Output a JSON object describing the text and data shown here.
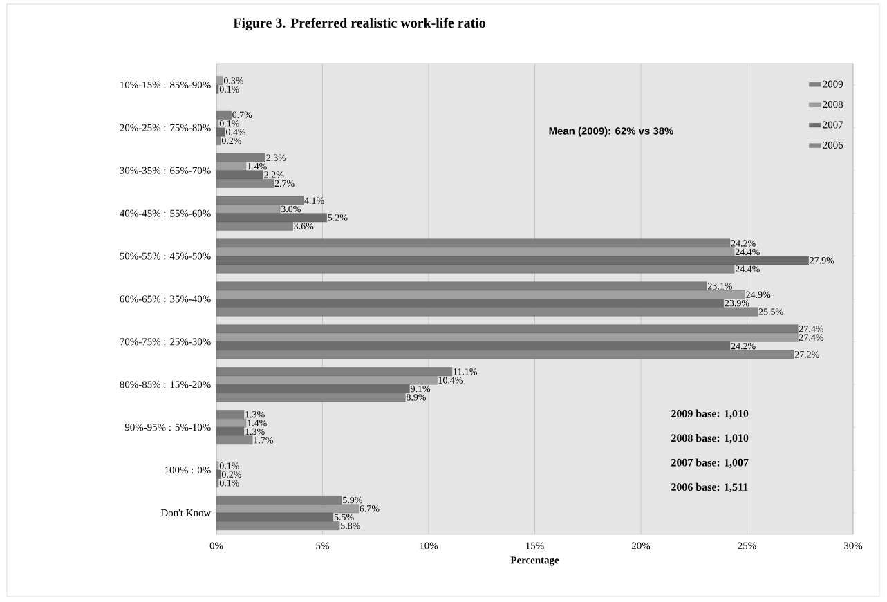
{
  "chart_data": {
    "type": "bar",
    "orientation": "horizontal",
    "title": "Figure 3. Preferred realistic work-life ratio",
    "xlabel": "Percentage",
    "categories": [
      "10%-15% : 85%-90%",
      "20%-25% : 75%-80%",
      "30%-35% : 65%-70%",
      "40%-45% : 55%-60%",
      "50%-55% : 45%-50%",
      "60%-65% : 35%-40%",
      "70%-75% : 25%-30%",
      "80%-85% : 15%-20%",
      "90%-95% : 5%-10%",
      "100% : 0%",
      "Don't Know"
    ],
    "series": [
      {
        "name": "2009",
        "color": "#7f7f7f",
        "values": [
          null,
          0.7,
          2.3,
          4.1,
          24.2,
          23.1,
          27.4,
          11.1,
          1.3,
          null,
          5.9
        ],
        "value_labels": [
          null,
          "0.7%",
          "2.3%",
          "4.1%",
          "24.2%",
          "23.1%",
          "27.4%",
          "11.1%",
          "1.3%",
          null,
          "5.9%"
        ]
      },
      {
        "name": "2008",
        "color": "#a0a0a0",
        "values": [
          0.3,
          0.1,
          1.4,
          3.0,
          24.4,
          24.9,
          27.4,
          10.4,
          1.4,
          0.1,
          6.7
        ],
        "value_labels": [
          "0.3%",
          "0.1%",
          "1.4%",
          "3.0%",
          "24.4%",
          "24.9%",
          "27.4%",
          "10.4%",
          "1.4%",
          "0.1%",
          "6.7%"
        ]
      },
      {
        "name": "2007",
        "color": "#6d6d6d",
        "values": [
          0.1,
          0.4,
          2.2,
          5.2,
          27.9,
          23.9,
          24.2,
          9.1,
          1.3,
          0.2,
          5.5
        ],
        "value_labels": [
          "0.1%",
          "0.4%",
          "2.2%",
          "5.2%",
          "27.9%",
          "23.9%",
          "24.2%",
          "9.1%",
          "1.3%",
          "0.2%",
          "5.5%"
        ]
      },
      {
        "name": "2006",
        "color": "#888888",
        "values": [
          null,
          0.2,
          2.7,
          3.6,
          24.4,
          25.5,
          27.2,
          8.9,
          1.7,
          0.1,
          5.8
        ],
        "value_labels": [
          null,
          "0.2%",
          "2.7%",
          "3.6%",
          "24.4%",
          "25.5%",
          "27.2%",
          "8.9%",
          "1.7%",
          "0.1%",
          "5.8%"
        ]
      }
    ],
    "xlim": [
      0,
      30
    ],
    "xticks": [
      {
        "value": 0,
        "label": "0%"
      },
      {
        "value": 5,
        "label": "5%"
      },
      {
        "value": 10,
        "label": "10%"
      },
      {
        "value": 15,
        "label": "15%"
      },
      {
        "value": 20,
        "label": "20%"
      },
      {
        "value": 25,
        "label": "25%"
      },
      {
        "value": 30,
        "label": "30%"
      }
    ],
    "grid": "x",
    "legend": "top right",
    "annotations": [
      "Mean (2009): 62% vs 38%",
      "2009 base: 1,010",
      "2008 base: 1,010",
      "2007 base: 1,007",
      "2006 base: 1,511"
    ]
  }
}
